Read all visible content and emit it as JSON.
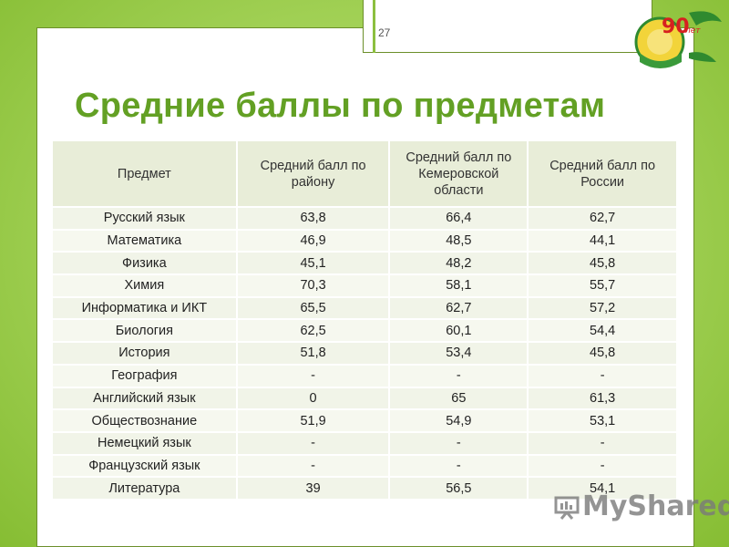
{
  "slide": {
    "number": "27",
    "title": "Средние баллы по предметам",
    "logo_text": "90",
    "logo_suffix": "лет",
    "watermark": "MyShared"
  },
  "table": {
    "headers": [
      "Предмет",
      "Средний балл по району",
      "Средний балл по Кемеровской области",
      "Средний балл по России"
    ],
    "rows": [
      [
        "Русский язык",
        "63,8",
        "66,4",
        "62,7"
      ],
      [
        "Математика",
        "46,9",
        "48,5",
        "44,1"
      ],
      [
        "Физика",
        "45,1",
        "48,2",
        "45,8"
      ],
      [
        "Химия",
        "70,3",
        "58,1",
        "55,7"
      ],
      [
        "Информатика и ИКТ",
        "65,5",
        "62,7",
        "57,2"
      ],
      [
        "Биология",
        "62,5",
        "60,1",
        "54,4"
      ],
      [
        "История",
        "51,8",
        "53,4",
        "45,8"
      ],
      [
        "География",
        "-",
        "-",
        "-"
      ],
      [
        "Английский язык",
        "0",
        "65",
        "61,3"
      ],
      [
        "Обществознание",
        "51,9",
        "54,9",
        "53,1"
      ],
      [
        "Немецкий язык",
        "-",
        "-",
        "-"
      ],
      [
        "Французский язык",
        "-",
        "-",
        "-"
      ],
      [
        "Литература",
        "39",
        "56,5",
        "54,1"
      ]
    ]
  },
  "colors": {
    "title": "#63a024",
    "background": "#a6d45b",
    "header_fill": "#e8edd8",
    "row_fill": "#f1f4e8"
  }
}
